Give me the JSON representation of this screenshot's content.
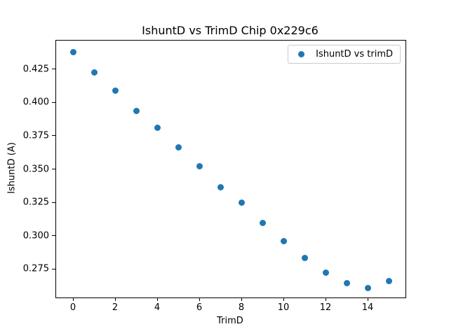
{
  "chart_data": {
    "type": "scatter",
    "title": "IshuntD vs TrimD Chip 0x229c6",
    "xlabel": "TrimD",
    "ylabel": "IshuntD (A)",
    "series": [
      {
        "name": "IshuntD vs trimD",
        "x": [
          0,
          1,
          2,
          3,
          4,
          5,
          6,
          7,
          8,
          9,
          10,
          11,
          12,
          13,
          14,
          15
        ],
        "y": [
          0.4378,
          0.4225,
          0.4091,
          0.3937,
          0.3811,
          0.3662,
          0.3519,
          0.3361,
          0.3246,
          0.3093,
          0.2957,
          0.2831,
          0.2722,
          0.2643,
          0.2608,
          0.2661
        ]
      }
    ],
    "legend": {
      "label": "IshuntD vs trimD",
      "position": "upper right"
    },
    "marker_color": "#1f77b4",
    "xlim": [
      -0.8,
      15.8
    ],
    "ylim": [
      0.2536,
      0.4464
    ],
    "xticks": [
      0,
      2,
      4,
      6,
      8,
      10,
      12,
      14
    ],
    "yticks": [
      0.275,
      0.3,
      0.325,
      0.35,
      0.375,
      0.4,
      0.425
    ],
    "ytick_decimals": 3,
    "grid": false
  }
}
